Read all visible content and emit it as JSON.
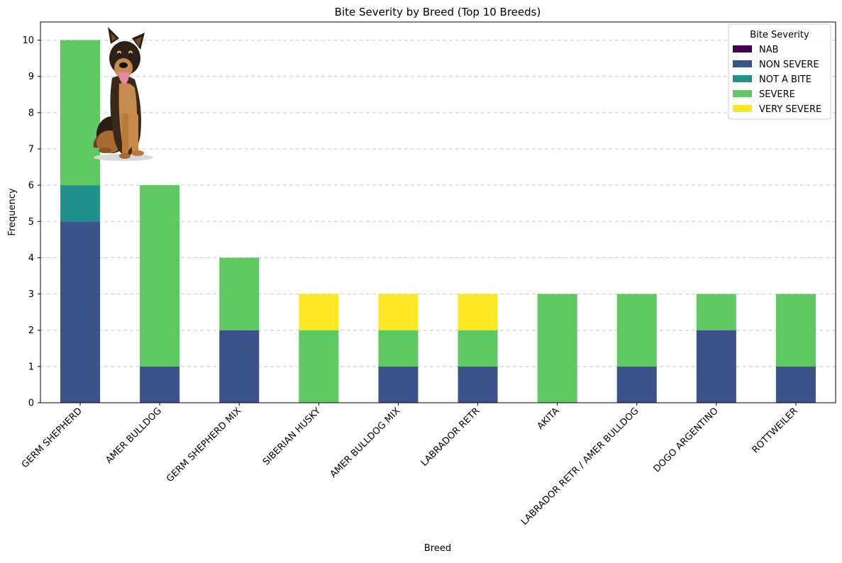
{
  "chart_data": {
    "type": "bar",
    "stacked": true,
    "title": "Bite Severity by Breed (Top 10 Breeds)",
    "xlabel": "Breed",
    "ylabel": "Frequency",
    "ylim": [
      0,
      10.5
    ],
    "yticks": [
      0,
      1,
      2,
      3,
      4,
      5,
      6,
      7,
      8,
      9,
      10
    ],
    "grid": "y-dashed",
    "categories": [
      "GERM SHEPHERD",
      "AMER BULLDOG",
      "GERM SHEPHERD MIX",
      "SIBERIAN HUSKY",
      "AMER BULLDOG MIX",
      "LABRADOR RETR",
      "AKITA",
      "LABRADOR RETR / AMER BULLDOG",
      "DOGO ARGENTINO",
      "ROTTWEILER"
    ],
    "legend": {
      "title": "Bite Severity",
      "placement": "top-right"
    },
    "series": [
      {
        "name": "NAB",
        "color": "#440154",
        "values": [
          0,
          0,
          0,
          0,
          0,
          0,
          0,
          0,
          0,
          0
        ]
      },
      {
        "name": "NON SEVERE",
        "color": "#3b528b",
        "values": [
          5,
          1,
          2,
          0,
          1,
          1,
          0,
          1,
          2,
          1
        ]
      },
      {
        "name": "NOT A BITE",
        "color": "#21918c",
        "values": [
          1,
          0,
          0,
          0,
          0,
          0,
          0,
          0,
          0,
          0
        ]
      },
      {
        "name": "SEVERE",
        "color": "#5ec962",
        "values": [
          4,
          5,
          2,
          2,
          1,
          1,
          3,
          2,
          1,
          2
        ]
      },
      {
        "name": "VERY SEVERE",
        "color": "#fde725",
        "values": [
          0,
          0,
          0,
          1,
          1,
          1,
          0,
          0,
          0,
          0
        ]
      }
    ],
    "image_overlay": {
      "icon": "german-shepherd-dog-icon"
    }
  }
}
